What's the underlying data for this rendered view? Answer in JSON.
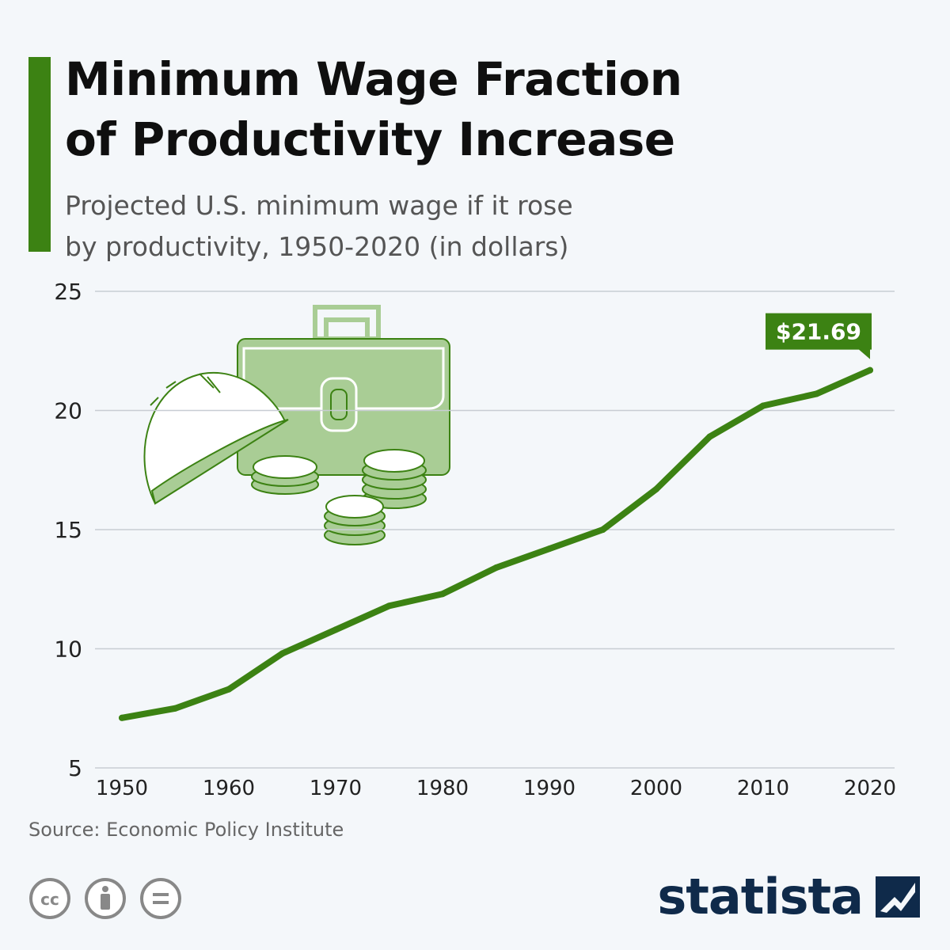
{
  "title": "Minimum Wage Fraction\nof Productivity Increase",
  "subtitle": "Projected U.S. minimum wage if it rose\nby productivity, 1950-2020 (in dollars)",
  "source": "Source: Economic Policy Institute",
  "brand": "statista",
  "license_icons": [
    "creative-commons-icon",
    "attribution-icon",
    "no-derivatives-icon"
  ],
  "colors": {
    "accent": "#3c8213",
    "line": "#3c8213",
    "grid": "#c8cdd3",
    "illustration": "#a9cd95"
  },
  "chart_data": {
    "type": "line",
    "x": [
      1950,
      1955,
      1960,
      1965,
      1970,
      1975,
      1980,
      1985,
      1990,
      1995,
      2000,
      2005,
      2010,
      2015,
      2020
    ],
    "series": [
      {
        "values": [
          7.1,
          7.5,
          8.3,
          9.8,
          10.8,
          11.8,
          12.3,
          13.4,
          14.2,
          15.0,
          16.7,
          18.9,
          20.2,
          20.7,
          21.69
        ]
      }
    ],
    "xticks": [
      1950,
      1960,
      1970,
      1980,
      1990,
      2000,
      2010,
      2020
    ],
    "yticks": [
      5,
      10,
      15,
      20,
      25
    ],
    "xlim": [
      1950,
      2020
    ],
    "ylim": [
      5,
      25
    ],
    "grid": true,
    "annotation": {
      "text": "$21.69",
      "x": 2020,
      "y": 21.69
    }
  }
}
